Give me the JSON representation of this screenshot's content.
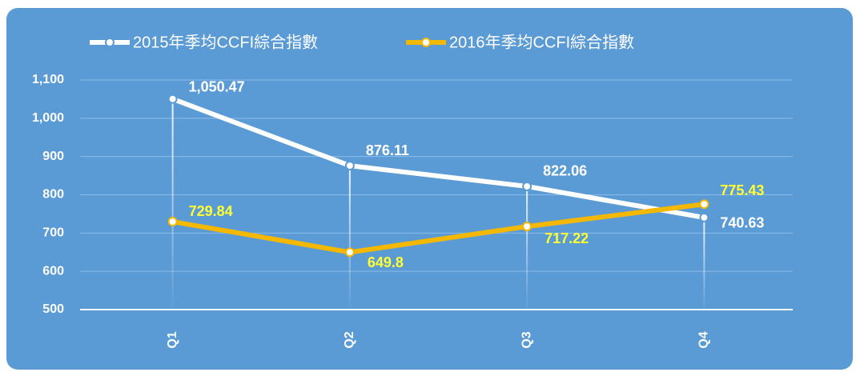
{
  "chart_data": {
    "type": "line",
    "categories": [
      "Q1",
      "Q2",
      "Q3",
      "Q4"
    ],
    "series": [
      {
        "name": "2015年季均CCFI綜合指數",
        "color": "#ffffff",
        "values": [
          1050.47,
          876.11,
          822.06,
          740.63
        ],
        "value_labels": [
          "1,050.47",
          "876.11",
          "822.06",
          "740.63"
        ],
        "label_color": "#ffffff"
      },
      {
        "name": "2016年季均CCFI綜合指數",
        "color": "#f5b800",
        "values": [
          729.84,
          649.8,
          717.22,
          775.43
        ],
        "label_color": "#ffff33"
      }
    ],
    "ylim": [
      500,
      1100
    ],
    "yticks": [
      500,
      600,
      700,
      800,
      900,
      {
        "value": 1000,
        "label": "1,000"
      },
      {
        "value": 1100,
        "label": "1,100"
      }
    ],
    "grid": true,
    "legend": "top"
  }
}
